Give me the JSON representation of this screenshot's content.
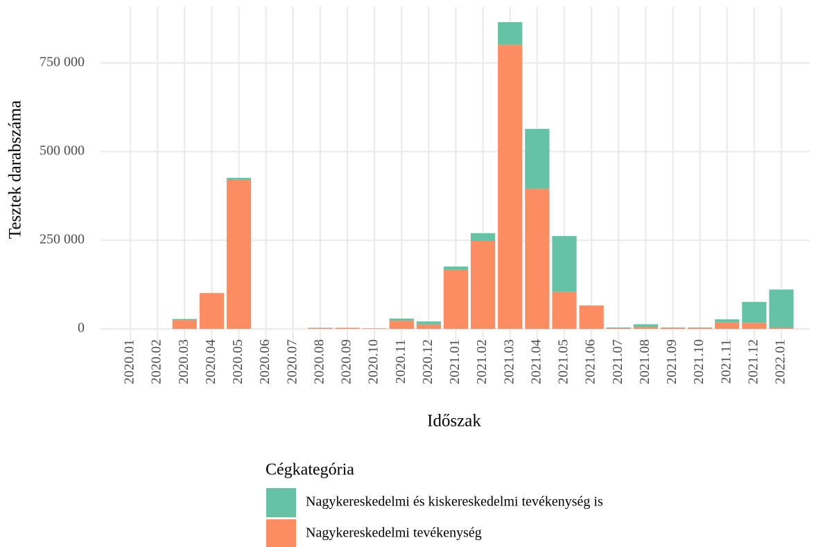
{
  "chart_data": {
    "type": "stacked_bar",
    "xlabel": "Időszak",
    "ylabel": "Tesztek darabszáma",
    "legend_title": "Cégkategória",
    "legend_position": "bottom",
    "grid": true,
    "categories": [
      "2020.01",
      "2020.02",
      "2020.03",
      "2020.04",
      "2020.05",
      "2020.06",
      "2020.07",
      "2020.08",
      "2020.09",
      "2020.10",
      "2020.11",
      "2020.12",
      "2021.01",
      "2021.02",
      "2021.03",
      "2021.04",
      "2021.05",
      "2021.06",
      "2021.07",
      "2021.08",
      "2021.09",
      "2021.10",
      "2021.11",
      "2021.12",
      "2022.01"
    ],
    "series": [
      {
        "name": "Nagykereskedelmi és kiskereskedelmi tevékenység is",
        "color": "#66c2a5",
        "values": [
          0,
          0,
          3000,
          0,
          6000,
          0,
          0,
          1000,
          0,
          0,
          6000,
          9000,
          10000,
          22000,
          64000,
          169000,
          158000,
          0,
          2000,
          8000,
          1000,
          1000,
          9000,
          59000,
          108000
        ]
      },
      {
        "name": "Nagykereskedelmi tevékenység",
        "color": "#fc8d62",
        "values": [
          0,
          0,
          25000,
          101000,
          420000,
          0,
          0,
          2000,
          3000,
          1500,
          23000,
          12000,
          166000,
          248000,
          801000,
          395000,
          104000,
          66000,
          2000,
          5000,
          3000,
          3000,
          18000,
          17000,
          3000
        ]
      }
    ],
    "ylim": [
      -43000,
      908000
    ],
    "yticks": [
      0,
      {
        "value": 250000,
        "label": "250 000"
      },
      {
        "value": 500000,
        "label": "500 000"
      },
      {
        "value": 750000,
        "label": "750 000"
      }
    ]
  }
}
